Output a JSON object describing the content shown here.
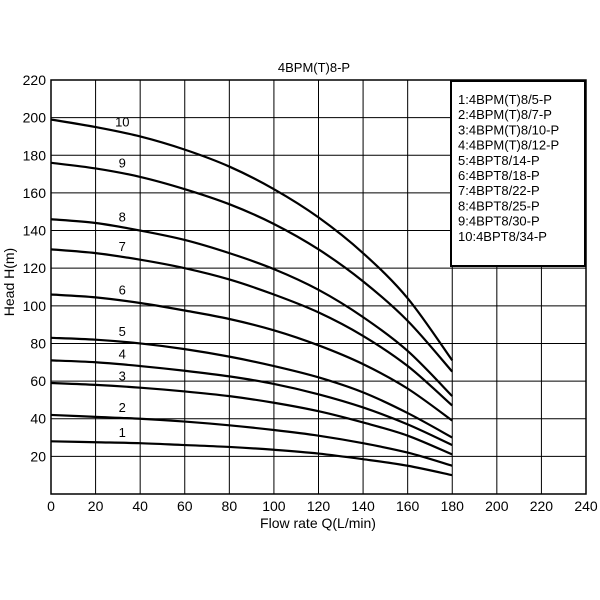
{
  "chart_data": {
    "type": "line",
    "title": "4BPM(T)8-P",
    "xlabel": "Flow rate Q(L/min)",
    "ylabel": "Head H(m)",
    "xlim": [
      0,
      240
    ],
    "ylim": [
      0,
      220
    ],
    "x_ticks": [
      "0",
      "20",
      "40",
      "60",
      "80",
      "100",
      "120",
      "140",
      "160",
      "180",
      "200",
      "220",
      "240"
    ],
    "y_ticks": [
      "20",
      "40",
      "60",
      "80",
      "100",
      "120",
      "140",
      "160",
      "180",
      "200",
      "220"
    ],
    "grid": true,
    "legend_position": "top-right",
    "legend": [
      "1:4BPM(T)8/5-P",
      "2:4BPM(T)8/7-P",
      "3:4BPM(T)8/10-P",
      "4:4BPM(T)8/12-P",
      "5:4BPT8/14-P",
      "6:4BPT8/18-P",
      "7:4BPT8/22-P",
      "8:4BPT8/25-P",
      "9:4BPT8/30-P",
      "10:4BPT8/34-P"
    ],
    "x": [
      0,
      20,
      40,
      60,
      80,
      100,
      120,
      140,
      160,
      180
    ],
    "series": [
      {
        "name": "1",
        "label_x": 32,
        "values": [
          28,
          27.5,
          27,
          26,
          25,
          23.5,
          21.5,
          18.5,
          15,
          10
        ]
      },
      {
        "name": "2",
        "label_x": 32,
        "values": [
          42,
          41,
          40,
          38.5,
          36.5,
          34,
          31,
          27,
          22,
          15
        ]
      },
      {
        "name": "3",
        "label_x": 32,
        "values": [
          59,
          58,
          56.5,
          54.5,
          52,
          48.5,
          44,
          38,
          31,
          21
        ]
      },
      {
        "name": "4",
        "label_x": 32,
        "values": [
          71,
          70,
          68,
          65.5,
          62.5,
          58.5,
          53,
          46,
          37,
          26
        ]
      },
      {
        "name": "5",
        "label_x": 32,
        "values": [
          83,
          82,
          80,
          77,
          73,
          68,
          62,
          54,
          43,
          30
        ]
      },
      {
        "name": "6",
        "label_x": 32,
        "values": [
          106,
          104.5,
          101.5,
          97.5,
          93,
          87,
          79,
          69,
          56,
          39
        ]
      },
      {
        "name": "7",
        "label_x": 32,
        "values": [
          130,
          128,
          124.5,
          120,
          114,
          106,
          96.5,
          84,
          68,
          47
        ]
      },
      {
        "name": "8",
        "label_x": 32,
        "values": [
          146,
          144,
          140,
          135,
          128,
          119.5,
          108.5,
          94,
          76,
          52
        ]
      },
      {
        "name": "9",
        "label_x": 32,
        "values": [
          176,
          173,
          168.5,
          162,
          154,
          143.5,
          130,
          113,
          92,
          65
        ]
      },
      {
        "name": "10",
        "label_x": 32,
        "values": [
          199,
          195,
          190,
          183,
          174,
          162,
          147,
          128,
          104,
          71
        ]
      }
    ]
  }
}
